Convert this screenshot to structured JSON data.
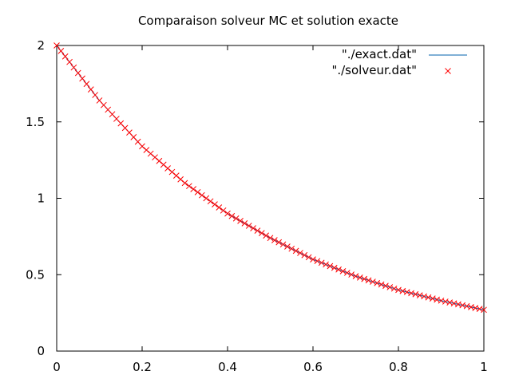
{
  "chart_data": {
    "type": "line",
    "title": "Comparaison solveur MC et solution exacte",
    "xlim": [
      0,
      1
    ],
    "ylim": [
      0,
      2
    ],
    "x_ticks": [
      "0",
      "0.2",
      "0.4",
      "0.6",
      "0.8",
      "1"
    ],
    "y_ticks": [
      "0",
      "0.5",
      "1",
      "1.5",
      "2"
    ],
    "grid": false,
    "legend_position": "top-right",
    "series": [
      {
        "name": "\"./exact.dat\"",
        "style": "line",
        "color": "#0060ad",
        "x": [
          0,
          0.1,
          0.2,
          0.3,
          0.4,
          0.5,
          0.6,
          0.7,
          0.8,
          0.9,
          1
        ],
        "y": [
          2.0,
          1.64,
          1.34,
          1.1,
          0.9,
          0.74,
          0.6,
          0.49,
          0.4,
          0.33,
          0.27
        ]
      },
      {
        "name": "\"./solveur.dat\"",
        "style": "points",
        "marker": "x",
        "color": "#ff0000",
        "x": [
          0,
          0.1,
          0.2,
          0.3,
          0.4,
          0.5,
          0.6,
          0.7,
          0.8,
          0.9,
          1
        ],
        "y": [
          2.0,
          1.64,
          1.34,
          1.1,
          0.9,
          0.74,
          0.6,
          0.49,
          0.4,
          0.33,
          0.27
        ]
      }
    ]
  }
}
